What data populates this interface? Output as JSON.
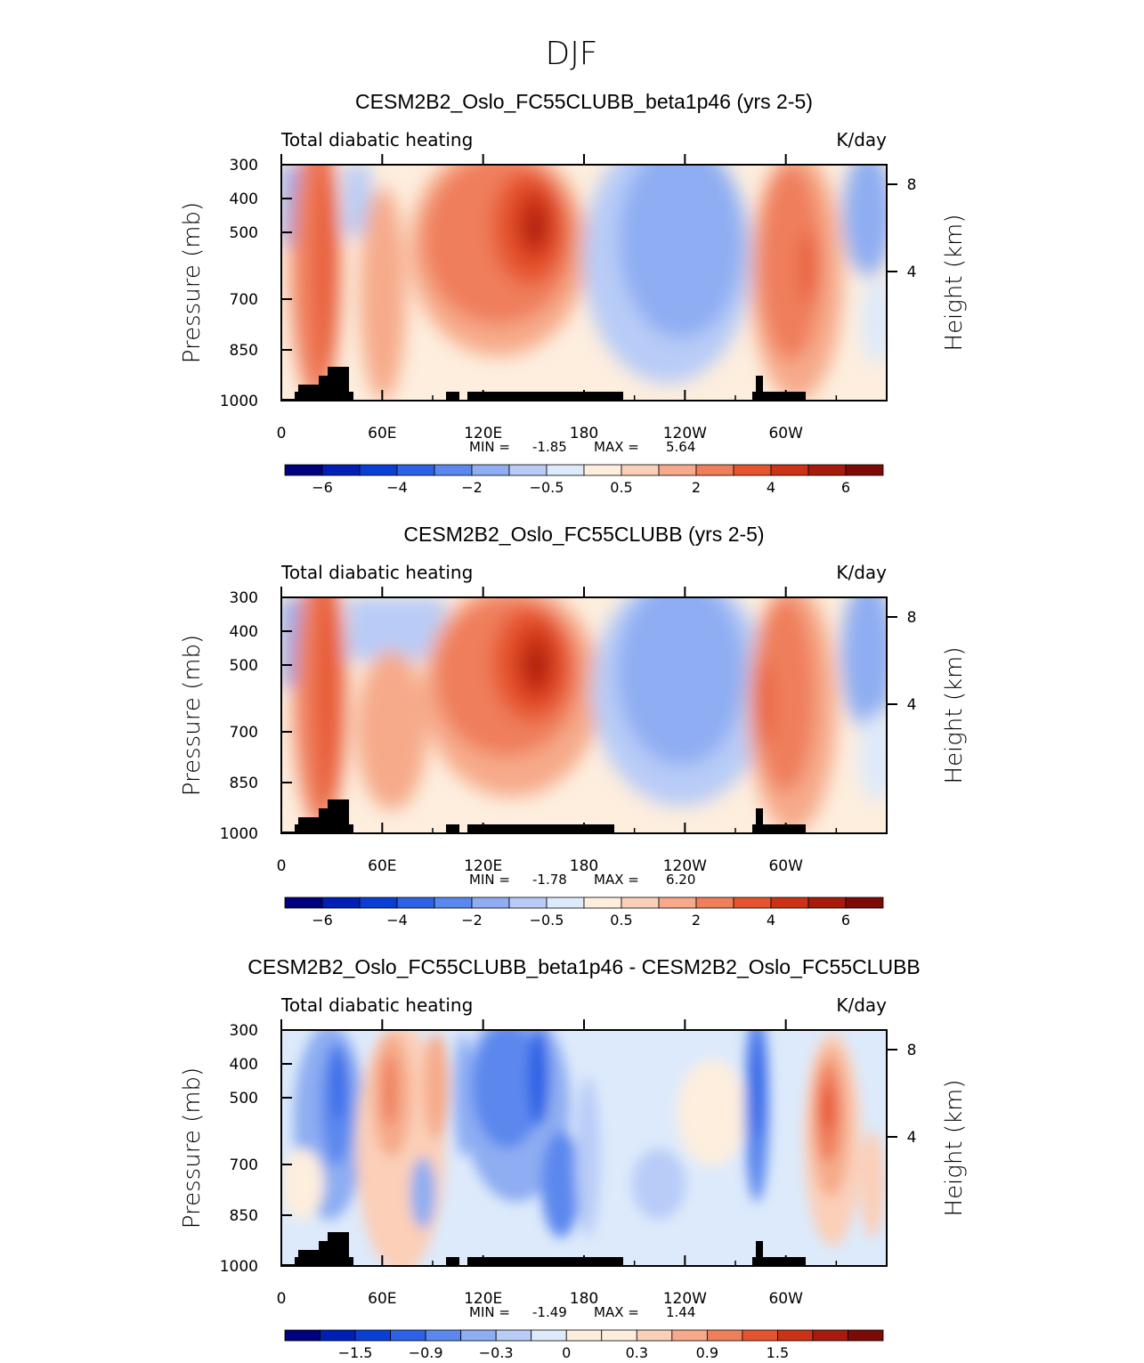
{
  "page_title": "DJF",
  "panel_common": {
    "left_string": "Total diabatic heating",
    "right_string": "K/day",
    "left_axis_label": "Pressure (mb)",
    "right_axis_label": "Height (km)",
    "y_ticks": [
      "300",
      "400",
      "500",
      "700",
      "850",
      "1000"
    ],
    "x_ticks": [
      "0",
      "60E",
      "120E",
      "180",
      "120W",
      "60W"
    ],
    "height_ticks": [
      "8",
      "4"
    ],
    "min_label": "MIN =",
    "max_label": "MAX ="
  },
  "colors": {
    "ramp": [
      "#00007f",
      "#001fb4",
      "#0a3fd6",
      "#2d62e6",
      "#5b88ee",
      "#8eadf2",
      "#b8ccf7",
      "#ddeafb",
      "#fdeede",
      "#fbcfb8",
      "#f6aa8a",
      "#ef7e5b",
      "#e6542f",
      "#cc3216",
      "#a71b0c",
      "#7e0a05"
    ],
    "terrain": "#000000"
  },
  "chart_data": [
    {
      "type": "heatmap",
      "title": "CESM2B2_Oslo_FC55CLUBB_beta1p46 (yrs 2-5)",
      "x_range": [
        0,
        360
      ],
      "y_range_mb": [
        1000,
        300
      ],
      "min_value": "-1.85",
      "max_value": "5.64",
      "colorbar_labels": [
        "-6",
        "-4",
        "-2",
        "-0.5",
        "0.5",
        "2",
        "4",
        "6"
      ],
      "colorbar_levels": 15
    },
    {
      "type": "heatmap",
      "title": "CESM2B2_Oslo_FC55CLUBB (yrs 2-5)",
      "x_range": [
        0,
        360
      ],
      "y_range_mb": [
        1000,
        300
      ],
      "min_value": "-1.78",
      "max_value": "6.20",
      "colorbar_labels": [
        "-6",
        "-4",
        "-2",
        "-0.5",
        "0.5",
        "2",
        "4",
        "6"
      ],
      "colorbar_levels": 15
    },
    {
      "type": "heatmap",
      "title": "CESM2B2_Oslo_FC55CLUBB_beta1p46 - CESM2B2_Oslo_FC55CLUBB",
      "x_range": [
        0,
        360
      ],
      "y_range_mb": [
        1000,
        300
      ],
      "min_value": "-1.49",
      "max_value": "1.44",
      "colorbar_labels": [
        "-1.5",
        "-0.9",
        "-0.3",
        "0",
        "0.3",
        "0.9",
        "1.5"
      ],
      "colorbar_levels": 16
    }
  ]
}
